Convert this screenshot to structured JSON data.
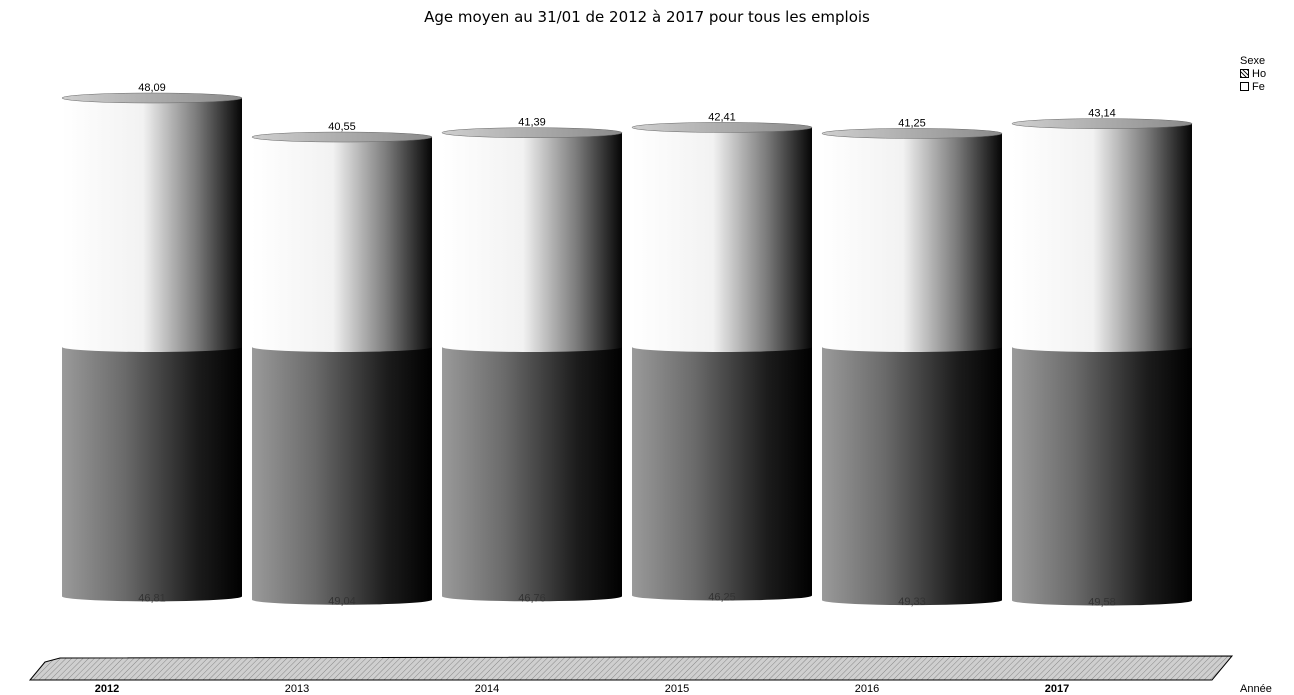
{
  "chart_data": {
    "type": "bar",
    "subtype": "stacked-3d-cylinder",
    "title": "Age moyen au 31/01 de 2012 à 2017 pour tous les emplois",
    "xlabel": "Année",
    "ylabel": "",
    "categories": [
      "2012",
      "2013",
      "2014",
      "2015",
      "2016",
      "2017"
    ],
    "series": [
      {
        "name": "Ho",
        "values": [
          46.81,
          49.04,
          46.76,
          46.25,
          49.33,
          49.58
        ],
        "labels": [
          "46,81",
          "49,04",
          "46,76",
          "46,25",
          "49,33",
          "49,58"
        ]
      },
      {
        "name": "Fe",
        "values": [
          48.09,
          40.55,
          41.39,
          42.41,
          41.25,
          43.14
        ],
        "labels": [
          "48,09",
          "40,55",
          "41,39",
          "42,41",
          "41,25",
          "43,14"
        ]
      }
    ],
    "legend_title": "Sexe",
    "legend_position": "top-right",
    "grid": false
  }
}
